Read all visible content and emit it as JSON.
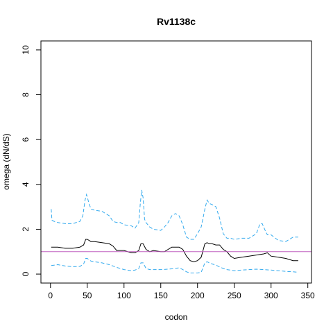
{
  "chart_data": {
    "type": "line",
    "title": "Rv1138c",
    "xlabel": "codon",
    "ylabel": "omega (dN/dS)",
    "xlim": [
      -13,
      355
    ],
    "ylim": [
      -0.4,
      10.4
    ],
    "x_ticks": [
      0,
      50,
      100,
      150,
      200,
      250,
      300,
      350
    ],
    "y_ticks": [
      0,
      2,
      4,
      6,
      8,
      10
    ],
    "grid": false,
    "reference_line": {
      "y": 1,
      "color": "#c060c0"
    },
    "series": [
      {
        "color": "#000000",
        "style": "solid",
        "x": [
          1,
          10,
          20,
          30,
          40,
          45,
          48,
          50,
          55,
          60,
          70,
          80,
          85,
          90,
          95,
          100,
          110,
          115,
          120,
          123,
          126,
          130,
          135,
          140,
          150,
          155,
          160,
          165,
          170,
          175,
          180,
          185,
          190,
          195,
          200,
          205,
          210,
          213,
          216,
          220,
          225,
          230,
          235,
          240,
          245,
          250,
          260,
          270,
          280,
          290,
          295,
          300,
          310,
          320,
          330,
          337
        ],
        "y": [
          1.2,
          1.2,
          1.15,
          1.15,
          1.2,
          1.3,
          1.55,
          1.55,
          1.45,
          1.45,
          1.4,
          1.35,
          1.25,
          1.05,
          1.05,
          1.05,
          0.95,
          0.95,
          1.05,
          1.35,
          1.35,
          1.1,
          1.0,
          1.05,
          1.0,
          1.0,
          1.1,
          1.2,
          1.2,
          1.2,
          1.1,
          0.8,
          0.6,
          0.55,
          0.6,
          0.75,
          1.35,
          1.4,
          1.35,
          1.35,
          1.3,
          1.3,
          1.1,
          1.0,
          0.8,
          0.7,
          0.75,
          0.8,
          0.85,
          0.9,
          0.95,
          0.8,
          0.75,
          0.7,
          0.6,
          0.6
        ]
      },
      {
        "color": "#33aaee",
        "style": "dashed",
        "x": [
          1,
          2,
          5,
          10,
          20,
          30,
          40,
          44,
          47,
          49,
          52,
          55,
          60,
          70,
          80,
          85,
          90,
          95,
          100,
          110,
          115,
          120,
          122,
          124,
          126,
          128,
          130,
          135,
          140,
          150,
          155,
          160,
          165,
          170,
          175,
          180,
          185,
          190,
          195,
          200,
          205,
          210,
          213,
          216,
          220,
          225,
          230,
          235,
          240,
          245,
          250,
          260,
          270,
          280,
          285,
          288,
          292,
          295,
          300,
          310,
          320,
          330,
          337
        ],
        "y": [
          2.9,
          2.4,
          2.35,
          2.3,
          2.25,
          2.25,
          2.35,
          2.6,
          3.3,
          3.55,
          3.2,
          2.9,
          2.85,
          2.8,
          2.6,
          2.35,
          2.3,
          2.3,
          2.2,
          2.15,
          2.05,
          2.3,
          3.1,
          3.75,
          3.4,
          2.45,
          2.3,
          2.1,
          2.0,
          1.95,
          2.1,
          2.3,
          2.6,
          2.7,
          2.6,
          2.2,
          1.65,
          1.55,
          1.55,
          1.8,
          2.1,
          2.9,
          3.3,
          3.15,
          3.1,
          3.0,
          2.5,
          1.8,
          1.6,
          1.6,
          1.55,
          1.6,
          1.6,
          1.8,
          2.25,
          2.25,
          1.95,
          1.75,
          1.75,
          1.5,
          1.45,
          1.65,
          1.65
        ]
      },
      {
        "color": "#33aaee",
        "style": "dashed",
        "x": [
          1,
          10,
          20,
          30,
          40,
          45,
          48,
          50,
          55,
          60,
          70,
          80,
          90,
          100,
          110,
          115,
          120,
          123,
          126,
          130,
          135,
          140,
          150,
          160,
          170,
          175,
          180,
          185,
          190,
          195,
          200,
          205,
          210,
          213,
          216,
          220,
          225,
          230,
          235,
          240,
          250,
          260,
          270,
          280,
          290,
          300,
          310,
          320,
          330,
          337
        ],
        "y": [
          0.38,
          0.42,
          0.36,
          0.33,
          0.34,
          0.45,
          0.7,
          0.7,
          0.58,
          0.55,
          0.5,
          0.42,
          0.3,
          0.2,
          0.15,
          0.18,
          0.25,
          0.5,
          0.5,
          0.25,
          0.2,
          0.2,
          0.2,
          0.22,
          0.25,
          0.28,
          0.2,
          0.1,
          0.05,
          0.05,
          0.05,
          0.08,
          0.5,
          0.55,
          0.5,
          0.45,
          0.4,
          0.32,
          0.25,
          0.2,
          0.15,
          0.18,
          0.2,
          0.22,
          0.2,
          0.18,
          0.15,
          0.12,
          0.1,
          0.08
        ]
      }
    ]
  }
}
